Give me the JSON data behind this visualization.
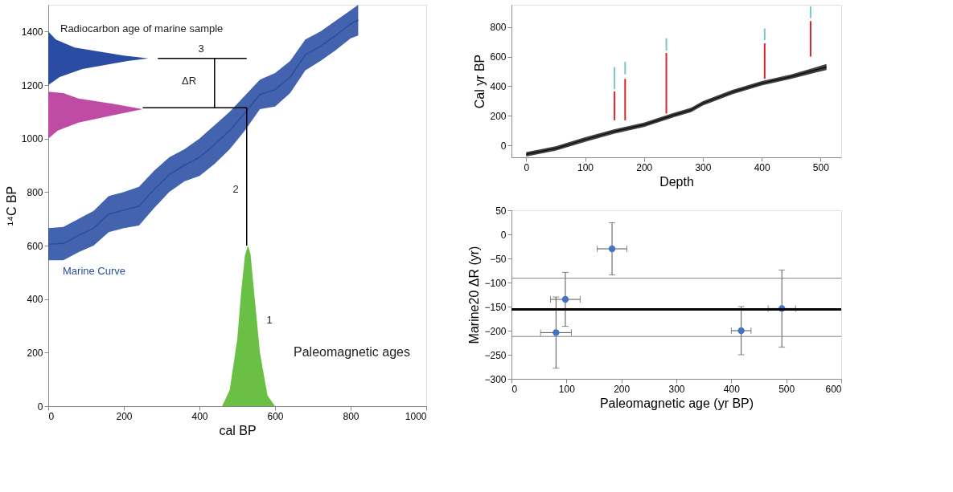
{
  "chart_data": [
    {
      "type": "area",
      "xlabel": "cal BP",
      "ylabel": "¹⁴C BP",
      "xlim": [
        0,
        1000
      ],
      "ylim": [
        0,
        1500
      ],
      "xticks": [
        0,
        200,
        400,
        600,
        800,
        1000
      ],
      "yticks": [
        0,
        200,
        400,
        600,
        800,
        1000,
        1200,
        1400
      ],
      "grid": false,
      "series": [
        {
          "type": "line",
          "name": "Marine Curve",
          "color": "#2a4da3",
          "x": [
            0,
            40,
            80,
            120,
            160,
            200,
            240,
            280,
            320,
            360,
            400,
            440,
            480,
            520,
            560,
            600,
            640,
            680,
            720,
            760,
            800,
            820
          ],
          "lower": [
            545,
            545,
            575,
            600,
            650,
            665,
            675,
            740,
            800,
            840,
            860,
            905,
            960,
            1030,
            1110,
            1120,
            1170,
            1255,
            1290,
            1330,
            1375,
            1385
          ],
          "upper": [
            665,
            670,
            700,
            730,
            785,
            800,
            820,
            880,
            930,
            960,
            1000,
            1050,
            1100,
            1160,
            1220,
            1245,
            1290,
            1370,
            1400,
            1440,
            1480,
            1500
          ],
          "values": [
            605,
            608,
            638,
            665,
            718,
            733,
            748,
            810,
            865,
            900,
            930,
            978,
            1030,
            1095,
            1165,
            1183,
            1230,
            1313,
            1345,
            1385,
            1428,
            1443
          ]
        },
        {
          "name": "Paleomagnetic ages",
          "color": "#6abf45",
          "x": [
            460,
            480,
            500,
            510,
            520,
            528,
            535,
            545,
            560,
            580,
            600
          ],
          "values": [
            0,
            60,
            250,
            420,
            560,
            600,
            570,
            420,
            200,
            40,
            0
          ]
        },
        {
          "color": "#c04ba4",
          "x": [
            0,
            25,
            80,
            180,
            250,
            170,
            80,
            40,
            0
          ],
          "values": [
            1000,
            1030,
            1060,
            1090,
            1110,
            1130,
            1150,
            1170,
            1175
          ]
        },
        {
          "name": "Radiocarbon age of marine sample",
          "color": "#2a4da3",
          "x": [
            0,
            30,
            90,
            210,
            265,
            200,
            70,
            20,
            0
          ],
          "values": [
            1200,
            1230,
            1260,
            1290,
            1300,
            1310,
            1340,
            1370,
            1400
          ]
        },
        {
          "type": "line",
          "color": "#000000",
          "x": [
            525,
            525,
            250
          ],
          "values": [
            600,
            1115,
            1115
          ]
        },
        {
          "type": "line",
          "color": "#000000",
          "x": [
            290,
            525
          ],
          "values": [
            1300,
            1300
          ]
        },
        {
          "type": "line",
          "color": "#000000",
          "x": [
            440,
            440
          ],
          "values": [
            1115,
            1300
          ]
        }
      ],
      "annotations": [
        "1",
        "2",
        "3",
        "ΔR"
      ]
    },
    {
      "type": "line",
      "xlabel": "Depth",
      "ylabel": "Cal yr BP",
      "xlim": [
        -25,
        535
      ],
      "ylim": [
        -80,
        950
      ],
      "xticks": [
        0,
        100,
        200,
        300,
        400,
        500
      ],
      "yticks": [
        0,
        200,
        400,
        600,
        800
      ],
      "grid": false,
      "series": [
        {
          "color": "#111111",
          "x": [
            0,
            50,
            100,
            150,
            200,
            250,
            280,
            300,
            350,
            400,
            450,
            510
          ],
          "values": [
            -60,
            -20,
            40,
            95,
            140,
            205,
            240,
            285,
            360,
            420,
            465,
            530
          ],
          "lower": [
            -75,
            -35,
            25,
            80,
            125,
            190,
            225,
            270,
            345,
            405,
            450,
            510
          ],
          "upper": [
            -45,
            -5,
            55,
            110,
            155,
            220,
            255,
            300,
            375,
            435,
            480,
            550
          ]
        },
        {
          "color": "#7fc4cc",
          "x": [
            150,
            150
          ],
          "values": [
            530,
            380
          ]
        },
        {
          "color": "#7fc4cc",
          "x": [
            168,
            168
          ],
          "values": [
            565,
            480
          ]
        },
        {
          "color": "#7fc4cc",
          "x": [
            238,
            238
          ],
          "values": [
            725,
            640
          ]
        },
        {
          "color": "#7fc4cc",
          "x": [
            405,
            405
          ],
          "values": [
            790,
            710
          ]
        },
        {
          "color": "#7fc4cc",
          "x": [
            483,
            483
          ],
          "values": [
            940,
            860
          ]
        },
        {
          "color": "#d62728",
          "x": [
            150,
            150
          ],
          "values": [
            365,
            170
          ]
        },
        {
          "color": "#d62728",
          "x": [
            168,
            168
          ],
          "values": [
            450,
            170
          ]
        },
        {
          "color": "#d62728",
          "x": [
            238,
            238
          ],
          "values": [
            625,
            215
          ]
        },
        {
          "color": "#d62728",
          "x": [
            405,
            405
          ],
          "values": [
            690,
            450
          ]
        },
        {
          "color": "#d62728",
          "x": [
            483,
            483
          ],
          "values": [
            840,
            600
          ]
        }
      ]
    },
    {
      "type": "scatter",
      "xlabel": "Paleomagnetic age (yr BP)",
      "ylabel": "Marine20 ΔR (yr)",
      "xlim": [
        0,
        600
      ],
      "ylim": [
        -300,
        50
      ],
      "xticks": [
        0,
        100,
        200,
        300,
        400,
        500,
        600
      ],
      "yticks": [
        -300,
        -250,
        -200,
        -150,
        -100,
        -50,
        0,
        50
      ],
      "grid": false,
      "marker": "circle",
      "series": [
        {
          "color": "#4472c4",
          "x": [
            81,
            98,
            183,
            418,
            492
          ],
          "values": [
            -204,
            -135,
            -30,
            -200,
            -154
          ],
          "errors": [
            [
              -278,
              -130
            ],
            [
              -191,
              -79
            ],
            [
              -84,
              24
            ],
            [
              -250,
              -150
            ],
            [
              -234,
              -74
            ]
          ],
          "xerrors": [
            28,
            27,
            27,
            18,
            25
          ]
        }
      ],
      "ref_lines": [
        {
          "axis": "y",
          "value": -156,
          "color": "#000000"
        },
        {
          "axis": "y",
          "value": -91,
          "color": "#808080"
        },
        {
          "axis": "y",
          "value": -212,
          "color": "#808080"
        }
      ]
    }
  ]
}
